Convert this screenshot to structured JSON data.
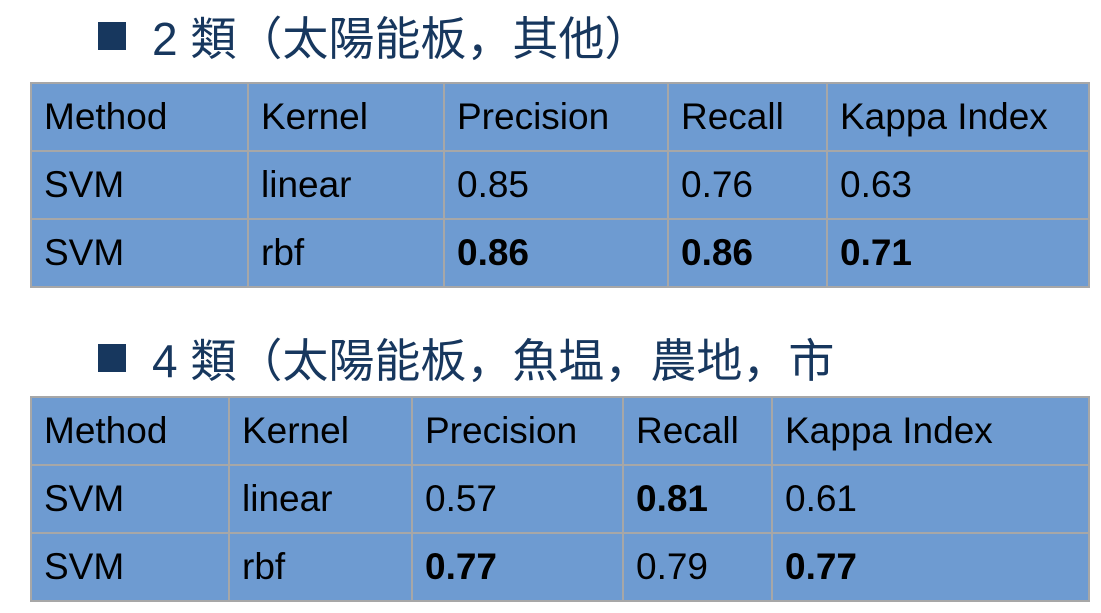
{
  "section1": {
    "title": "2  類（太陽能板，其他）",
    "headers": [
      "Method",
      "Kernel",
      "Precision",
      "Recall",
      "Kappa Index"
    ],
    "rows": [
      {
        "method": "SVM",
        "kernel": "linear",
        "precision": "0.85",
        "recall": "0.76",
        "kappa": "0.63"
      },
      {
        "method": "SVM",
        "kernel": "rbf",
        "precision": "0.86",
        "recall": "0.86",
        "kappa": "0.71"
      }
    ]
  },
  "section2": {
    "title": "4  類（太陽能板，魚塭，農地，市",
    "headers": [
      "Method",
      "Kernel",
      "Precision",
      "Recall",
      "Kappa Index"
    ],
    "rows": [
      {
        "method": "SVM",
        "kernel": "linear",
        "precision": "0.57",
        "recall": "0.81",
        "kappa": "0.61"
      },
      {
        "method": "SVM",
        "kernel": "rbf",
        "precision": "0.77",
        "recall": "0.79",
        "kappa": "0.77"
      }
    ]
  },
  "colors": {
    "heading_text": "#17375e",
    "table_fill": "#6e9bd1",
    "table_border": "#a7a7a7"
  }
}
